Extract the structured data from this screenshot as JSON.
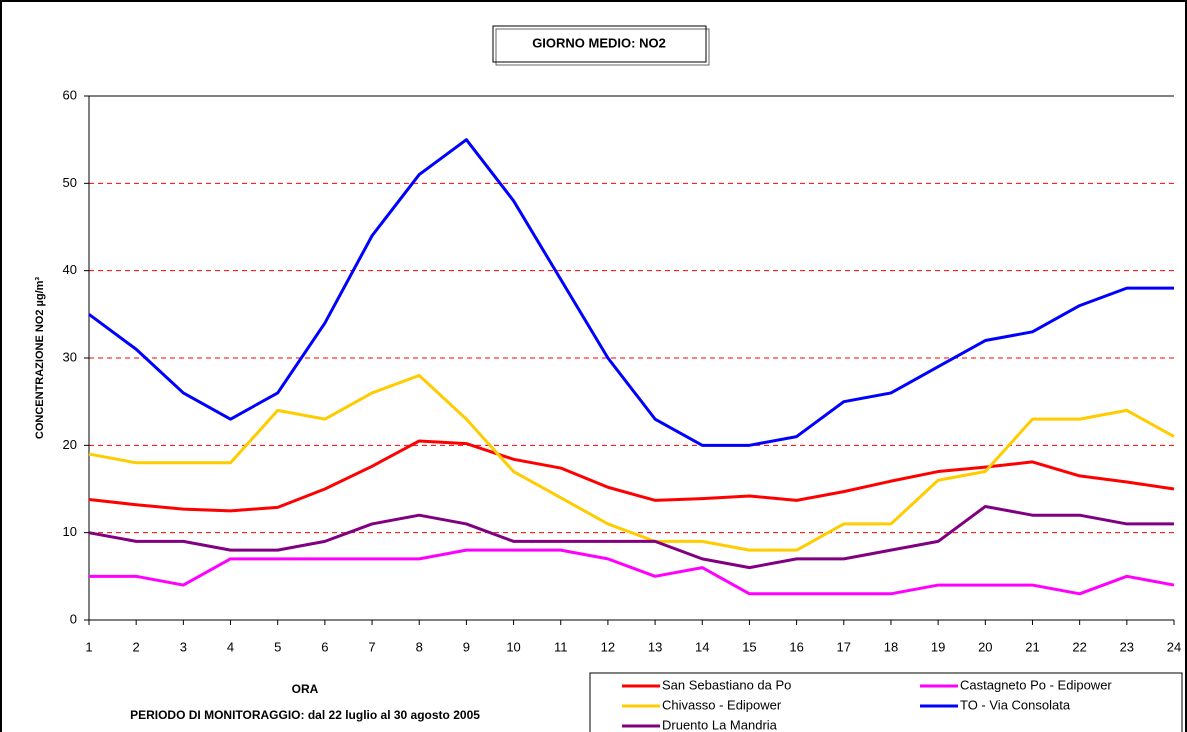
{
  "chart_data": {
    "type": "line",
    "title": "GIORNO MEDIO: NO2",
    "y_axis_label": "CONCENTRAZIONE NO2 µg/m³",
    "x_axis_label": "ORA",
    "subtitle": "PERIODO DI MONITORAGGIO: dal 22 luglio al 30 agosto 2005",
    "x": [
      1,
      2,
      3,
      4,
      5,
      6,
      7,
      8,
      9,
      10,
      11,
      12,
      13,
      14,
      15,
      16,
      17,
      18,
      19,
      20,
      21,
      22,
      23,
      24
    ],
    "xlim": [
      1,
      24
    ],
    "xticks": [
      1,
      2,
      3,
      4,
      5,
      6,
      7,
      8,
      9,
      10,
      11,
      12,
      13,
      14,
      15,
      16,
      17,
      18,
      19,
      20,
      21,
      22,
      23,
      24
    ],
    "ylim": [
      0,
      60
    ],
    "yticks": [
      0,
      10,
      20,
      30,
      40,
      50,
      60
    ],
    "grid": true,
    "legend": "bottom-right",
    "series": [
      {
        "name": "San Sebastiano da Po",
        "color": "#ff0000",
        "values": [
          13.8,
          13.2,
          12.7,
          12.5,
          12.9,
          15.0,
          17.6,
          20.5,
          20.2,
          18.4,
          17.4,
          15.2,
          13.7,
          13.9,
          14.2,
          13.7,
          14.7,
          15.9,
          17.0,
          17.5,
          18.1,
          16.5,
          15.8,
          15.0
        ]
      },
      {
        "name": "Castagneto Po - Edipower",
        "color": "#ff00ff",
        "values": [
          5,
          5,
          4,
          7,
          7,
          7,
          7,
          7,
          8,
          8,
          8,
          7,
          5,
          6,
          3,
          3,
          3,
          3,
          4,
          4,
          4,
          3,
          5,
          4
        ]
      },
      {
        "name": "Chivasso - Edipower",
        "color": "#ffcc00",
        "values": [
          19,
          18,
          18,
          18,
          24,
          23,
          26,
          28,
          23,
          17,
          14,
          11,
          9,
          9,
          8,
          8,
          11,
          11,
          16,
          17,
          23,
          23,
          24,
          21
        ]
      },
      {
        "name": "TO - Via Consolata",
        "color": "#0000ff",
        "values": [
          35,
          31,
          26,
          23,
          26,
          34,
          44,
          51,
          55,
          48,
          39,
          30,
          23,
          20,
          20,
          21,
          25,
          26,
          29,
          32,
          33,
          36,
          38,
          38
        ]
      },
      {
        "name": "Druento La Mandria",
        "color": "#800080",
        "values": [
          10,
          9,
          9,
          8,
          8,
          9,
          11,
          12,
          11,
          9,
          9,
          9,
          9,
          7,
          6,
          7,
          7,
          8,
          9,
          13,
          12,
          12,
          11,
          11
        ]
      }
    ]
  }
}
